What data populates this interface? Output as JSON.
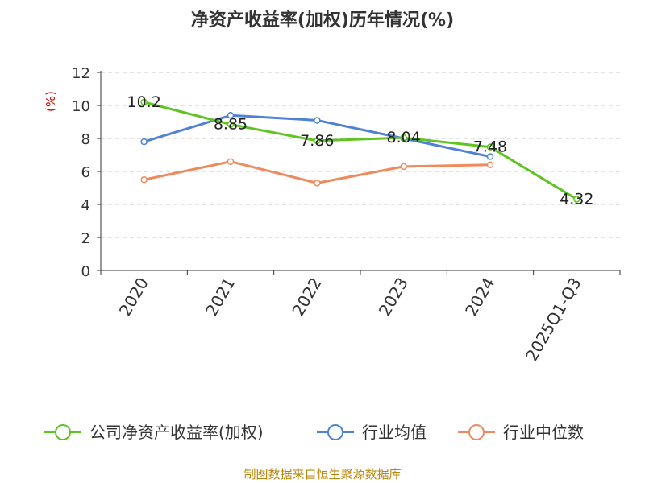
{
  "chart_data": {
    "type": "line",
    "title": "净资产收益率(加权)历年情况(%)",
    "ylabel": "(%)",
    "categories": [
      "2020",
      "2021",
      "2022",
      "2023",
      "2024",
      "2025Q1-Q3"
    ],
    "ylim": [
      0,
      12
    ],
    "yticks": [
      0,
      2,
      4,
      6,
      8,
      10,
      12
    ],
    "grid": true,
    "legend_position": "bottom",
    "series": [
      {
        "name": "公司净资产收益率(加权)",
        "color": "#5fc422",
        "values": [
          10.2,
          8.85,
          7.86,
          8.04,
          7.48,
          4.32
        ],
        "labels": [
          "10.2",
          "8.85",
          "7.86",
          "8.04",
          "7.48",
          "4.32"
        ]
      },
      {
        "name": "行业均值",
        "color": "#4f82d6",
        "values": [
          7.8,
          9.4,
          9.1,
          8.0,
          6.9,
          null
        ]
      },
      {
        "name": "行业中位数",
        "color": "#f08a5d",
        "values": [
          5.5,
          6.6,
          5.3,
          6.3,
          6.4,
          null
        ]
      }
    ]
  },
  "footer": {
    "source": "制图数据来自恒生聚源数据库"
  }
}
